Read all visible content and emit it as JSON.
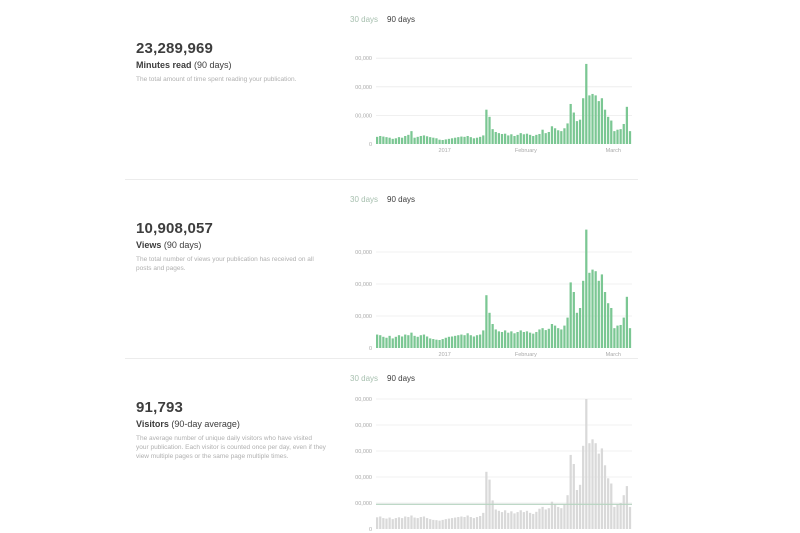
{
  "range_tabs": [
    "30 days",
    "90 days"
  ],
  "active_tab": "90 days",
  "colors": {
    "bar_green": "#7bc793",
    "bar_gray": "#d9d9d9",
    "grid": "#ebebeb"
  },
  "sections": [
    {
      "number": "23,289,969",
      "label_bold": "Minutes read",
      "label_rest": " (90 days)",
      "description": "The total amount of time spent reading your publication."
    },
    {
      "number": "10,908,057",
      "label_bold": "Views",
      "label_rest": " (90 days)",
      "description": "The total number of views your publication has received on all posts and pages."
    },
    {
      "number": "91,793",
      "label_bold": "Visitors",
      "label_rest": " (90-day average)",
      "description": "The average number of unique daily visitors who have visited your publication. Each visitor is counted once per day, even if they view multiple pages or the same page multiple times."
    }
  ],
  "chart_data": [
    {
      "type": "bar",
      "ytick_labels": [
        "0",
        "00,000",
        "00,000",
        "00,000"
      ],
      "ytick_levels": [
        0,
        1,
        2,
        3
      ],
      "xtick_labels": [
        "2017",
        "February",
        "March"
      ],
      "xtick_positions": [
        22,
        48,
        76
      ],
      "values": [
        0.25,
        0.28,
        0.26,
        0.24,
        0.22,
        0.18,
        0.2,
        0.24,
        0.22,
        0.28,
        0.32,
        0.45,
        0.22,
        0.25,
        0.28,
        0.3,
        0.27,
        0.24,
        0.22,
        0.2,
        0.15,
        0.14,
        0.16,
        0.18,
        0.2,
        0.22,
        0.24,
        0.26,
        0.25,
        0.28,
        0.24,
        0.2,
        0.22,
        0.25,
        0.3,
        1.2,
        0.95,
        0.52,
        0.42,
        0.38,
        0.35,
        0.36,
        0.3,
        0.34,
        0.28,
        0.32,
        0.38,
        0.34,
        0.36,
        0.32,
        0.28,
        0.32,
        0.35,
        0.5,
        0.38,
        0.42,
        0.62,
        0.55,
        0.48,
        0.45,
        0.55,
        0.72,
        1.4,
        1.1,
        0.8,
        0.85,
        1.6,
        2.8,
        1.7,
        1.75,
        1.7,
        1.5,
        1.6,
        1.2,
        0.95,
        0.82,
        0.45,
        0.5,
        0.52,
        0.7,
        1.3,
        0.45
      ],
      "ylim": [
        0,
        3.05
      ]
    },
    {
      "type": "bar",
      "ytick_labels": [
        "0",
        "00,000",
        "00,000",
        "00,000"
      ],
      "ytick_levels": [
        0,
        1,
        2,
        3
      ],
      "xtick_labels": [
        "2017",
        "February",
        "March"
      ],
      "xtick_positions": [
        22,
        48,
        76
      ],
      "values": [
        0.42,
        0.4,
        0.35,
        0.32,
        0.38,
        0.3,
        0.35,
        0.4,
        0.36,
        0.42,
        0.4,
        0.48,
        0.38,
        0.35,
        0.4,
        0.42,
        0.36,
        0.3,
        0.28,
        0.26,
        0.25,
        0.28,
        0.32,
        0.35,
        0.36,
        0.38,
        0.4,
        0.42,
        0.4,
        0.46,
        0.4,
        0.36,
        0.4,
        0.42,
        0.55,
        1.65,
        1.1,
        0.75,
        0.58,
        0.52,
        0.5,
        0.55,
        0.48,
        0.52,
        0.46,
        0.5,
        0.55,
        0.5,
        0.52,
        0.48,
        0.45,
        0.5,
        0.58,
        0.62,
        0.56,
        0.6,
        0.75,
        0.7,
        0.62,
        0.58,
        0.7,
        0.95,
        2.05,
        1.75,
        1.1,
        1.25,
        2.1,
        3.7,
        2.35,
        2.45,
        2.4,
        2.1,
        2.3,
        1.75,
        1.4,
        1.25,
        0.62,
        0.7,
        0.72,
        0.95,
        1.6,
        0.62
      ],
      "ylim": [
        0,
        3.85
      ]
    },
    {
      "type": "bar",
      "ytick_labels": [
        "0",
        "00,000",
        "00,000",
        "00,000",
        "00,000",
        "00,000"
      ],
      "ytick_levels": [
        0,
        1,
        2,
        3,
        4,
        5
      ],
      "xtick_labels": [],
      "xtick_positions": [],
      "average": 0.95,
      "values": [
        0.45,
        0.48,
        0.42,
        0.4,
        0.44,
        0.38,
        0.42,
        0.45,
        0.42,
        0.48,
        0.46,
        0.52,
        0.44,
        0.42,
        0.46,
        0.48,
        0.42,
        0.38,
        0.35,
        0.34,
        0.32,
        0.35,
        0.38,
        0.4,
        0.42,
        0.44,
        0.46,
        0.48,
        0.46,
        0.52,
        0.46,
        0.42,
        0.46,
        0.5,
        0.62,
        2.2,
        1.9,
        1.1,
        0.75,
        0.7,
        0.65,
        0.72,
        0.62,
        0.68,
        0.6,
        0.65,
        0.72,
        0.65,
        0.7,
        0.62,
        0.58,
        0.66,
        0.78,
        0.85,
        0.75,
        0.8,
        1.05,
        0.95,
        0.85,
        0.8,
        0.95,
        1.3,
        2.85,
        2.5,
        1.5,
        1.7,
        3.2,
        5.0,
        3.3,
        3.45,
        3.3,
        2.9,
        3.1,
        2.45,
        1.95,
        1.75,
        0.85,
        0.95,
        1.0,
        1.3,
        1.65,
        0.85
      ],
      "ylim": [
        0,
        5.25
      ]
    }
  ]
}
